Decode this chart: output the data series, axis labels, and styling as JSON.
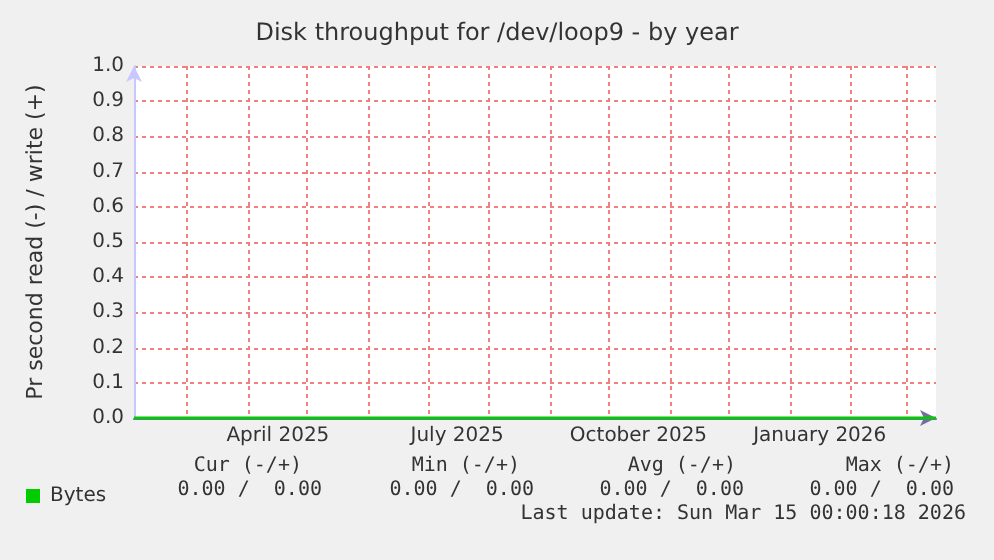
{
  "chart_data": {
    "type": "line",
    "title": "Disk throughput for /dev/loop9 - by year",
    "ylabel": "Pr second read (-) / write (+)",
    "x": [
      "2025-02-02",
      "2026-03-16"
    ],
    "series": [
      {
        "name": "Bytes",
        "color": "#00cc00",
        "values": [
          0,
          0
        ]
      }
    ],
    "xlim": [
      "2025-02-02",
      "2026-03-16"
    ],
    "xticks": [
      {
        "value": "2025-03-01",
        "label": null
      },
      {
        "value": "2025-04-01",
        "label": null
      },
      {
        "value": "2025-05-01",
        "label": null
      },
      {
        "value": "2025-06-01",
        "label": null
      },
      {
        "value": "2025-07-01",
        "label": null
      },
      {
        "value": "2025-08-01",
        "label": null
      },
      {
        "value": "2025-09-01",
        "label": null
      },
      {
        "value": "2025-10-01",
        "label": null
      },
      {
        "value": "2025-11-01",
        "label": null
      },
      {
        "value": "2025-12-01",
        "label": null
      },
      {
        "value": "2026-01-01",
        "label": null
      },
      {
        "value": "2026-02-01",
        "label": null
      },
      {
        "value": "2026-03-01",
        "label": null
      },
      {
        "value": "2025-04-16",
        "label": "April 2025"
      },
      {
        "value": "2025-07-16",
        "label": "July 2025"
      },
      {
        "value": "2025-10-16",
        "label": "October 2025"
      },
      {
        "value": "2026-01-16",
        "label": "January 2026"
      }
    ],
    "ylim": [
      0,
      1
    ],
    "yticks": [
      {
        "value": 0,
        "label": "0.0"
      },
      0.1,
      0.2,
      0.3,
      0.4,
      0.5,
      0.6,
      0.7,
      0.8,
      0.9,
      {
        "value": 1,
        "label": "1.0"
      }
    ],
    "grid": true,
    "legend": "bottom left",
    "marker": "none",
    "line_style": "solid",
    "annotations": [
      "Cur (-/+)",
      "Min (-/+)",
      "Avg (-/+)",
      "Max (-/+)",
      "0.00 /  0.00",
      "0.00 /  0.00",
      "0.00 /  0.00",
      "0.00 /  0.00",
      "Last update: Sun Mar 15 00:00:18 2026"
    ]
  }
}
